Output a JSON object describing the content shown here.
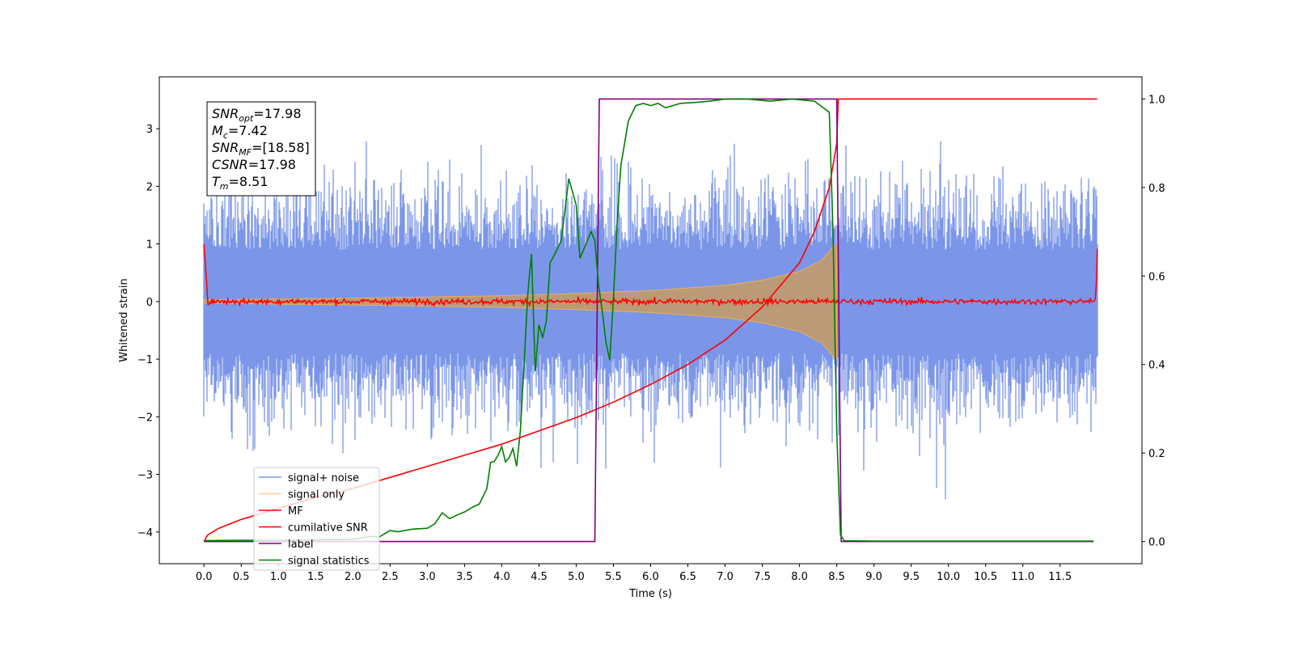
{
  "chart_data": {
    "type": "line",
    "title": "",
    "xlabel": "Time (s)",
    "ylabel": "Whitened strain",
    "xlim": [
      -0.6,
      12.6
    ],
    "ylim": [
      -4.55,
      3.9
    ],
    "y2lim": [
      -0.05,
      1.05
    ],
    "xticks": [
      "0.0",
      "0.5",
      "1.0",
      "1.5",
      "2.0",
      "2.5",
      "3.0",
      "3.5",
      "4.0",
      "4.5",
      "5.0",
      "5.5",
      "6.0",
      "6.5",
      "7.0",
      "7.5",
      "8.0",
      "8.5",
      "9.0",
      "9.5",
      "10.0",
      "10.5",
      "11.0",
      "11.5"
    ],
    "yticks": [
      "3",
      "2",
      "1",
      "0",
      "−1",
      "−2",
      "−3",
      "−4"
    ],
    "y2ticks": [
      "1.0",
      "0.8",
      "0.6",
      "0.4",
      "0.2",
      "0.0"
    ],
    "grid": false,
    "legend_position": "lower-left",
    "colors": {
      "signal_noise": "#7b96e8",
      "signal_only": "#ffb347",
      "signal_fill": "#bf9a72",
      "mf": "#ff0000",
      "cumulative_snr": "#ff0000",
      "label": "#800080",
      "signal_statistics": "#008000"
    },
    "signal_noise": {
      "x_range": [
        0.0,
        12.0
      ],
      "y_range": [
        -3.6,
        3.55
      ],
      "note_axis": "left"
    },
    "signal_only": {
      "x_range": [
        0.0,
        8.51
      ],
      "envelope": {
        "x": [
          0.0,
          2.0,
          4.0,
          5.0,
          6.0,
          7.0,
          7.5,
          8.0,
          8.3,
          8.45,
          8.51
        ],
        "amp": [
          0.03,
          0.06,
          0.1,
          0.14,
          0.19,
          0.28,
          0.37,
          0.52,
          0.72,
          0.95,
          1.0
        ]
      }
    },
    "mf": {
      "x_range": [
        0.0,
        12.0
      ],
      "start_value": 1.0,
      "end_value": 0.92,
      "baseline": 0.0
    },
    "series": [
      {
        "name": "cumilative SNR",
        "axis": "right",
        "x": [
          0.0,
          0.05,
          0.2,
          0.5,
          1.0,
          1.5,
          2.0,
          2.5,
          3.0,
          3.5,
          4.0,
          4.5,
          5.0,
          5.5,
          6.0,
          6.5,
          7.0,
          7.5,
          8.0,
          8.2,
          8.4,
          8.5,
          8.52,
          9.0,
          10.0,
          11.0,
          11.5,
          12.0
        ],
        "values": [
          0.0,
          0.015,
          0.03,
          0.05,
          0.075,
          0.1,
          0.12,
          0.145,
          0.17,
          0.195,
          0.22,
          0.25,
          0.28,
          0.315,
          0.355,
          0.4,
          0.455,
          0.53,
          0.63,
          0.7,
          0.8,
          0.9,
          1.0,
          1.0,
          1.0,
          1.0,
          1.0,
          1.0
        ]
      },
      {
        "name": "label",
        "axis": "right",
        "x": [
          0.0,
          5.25,
          5.31,
          8.5,
          8.56,
          11.95
        ],
        "values": [
          0.0,
          0.0,
          1.0,
          1.0,
          0.0,
          0.0
        ]
      },
      {
        "name": "signal statistics",
        "axis": "right",
        "x": [
          0.0,
          0.5,
          1.0,
          1.5,
          2.0,
          2.25,
          2.35,
          2.5,
          2.6,
          2.8,
          3.0,
          3.1,
          3.2,
          3.3,
          3.4,
          3.5,
          3.6,
          3.7,
          3.8,
          3.85,
          3.9,
          3.95,
          4.0,
          4.05,
          4.1,
          4.15,
          4.2,
          4.25,
          4.3,
          4.35,
          4.4,
          4.45,
          4.5,
          4.55,
          4.6,
          4.65,
          4.7,
          4.8,
          4.9,
          5.0,
          5.05,
          5.1,
          5.15,
          5.2,
          5.25,
          5.3,
          5.35,
          5.4,
          5.45,
          5.5,
          5.55,
          5.6,
          5.65,
          5.7,
          5.8,
          5.9,
          6.0,
          6.1,
          6.2,
          6.4,
          6.6,
          6.8,
          7.0,
          7.3,
          7.6,
          7.9,
          8.2,
          8.4,
          8.45,
          8.5,
          8.55,
          8.6,
          9.0,
          10.0,
          11.0,
          11.95
        ],
        "values": [
          0.002,
          0.003,
          0.003,
          0.004,
          0.005,
          0.012,
          0.01,
          0.025,
          0.022,
          0.028,
          0.03,
          0.04,
          0.065,
          0.052,
          0.06,
          0.067,
          0.077,
          0.085,
          0.12,
          0.179,
          0.181,
          0.195,
          0.215,
          0.18,
          0.19,
          0.21,
          0.17,
          0.25,
          0.4,
          0.56,
          0.65,
          0.385,
          0.49,
          0.46,
          0.5,
          0.63,
          0.645,
          0.68,
          0.82,
          0.76,
          0.64,
          0.66,
          0.68,
          0.7,
          0.68,
          0.58,
          0.52,
          0.45,
          0.41,
          0.55,
          0.72,
          0.85,
          0.9,
          0.95,
          0.985,
          0.99,
          0.985,
          0.99,
          0.98,
          0.99,
          0.992,
          0.995,
          1.0,
          1.0,
          0.995,
          1.0,
          0.995,
          0.97,
          0.7,
          0.25,
          0.015,
          0.002,
          0.001,
          0.001,
          0.001,
          0.001
        ]
      }
    ],
    "legend": [
      "signal+ noise",
      "signal only",
      "MF",
      "cumilative SNR",
      "label",
      "signal statistics"
    ],
    "annotation_box": {
      "lines": [
        {
          "main": "SNR",
          "sub": "opt",
          "rest": "=17.98"
        },
        {
          "main": "M",
          "sub": "c",
          "rest": "=7.42"
        },
        {
          "main": "SNR",
          "sub": "MF",
          "rest": "=[18.58]"
        },
        {
          "main": "CSNR",
          "sub": "",
          "rest": "=17.98"
        },
        {
          "main": "T",
          "sub": "m",
          "rest": "=8.51"
        }
      ]
    }
  }
}
